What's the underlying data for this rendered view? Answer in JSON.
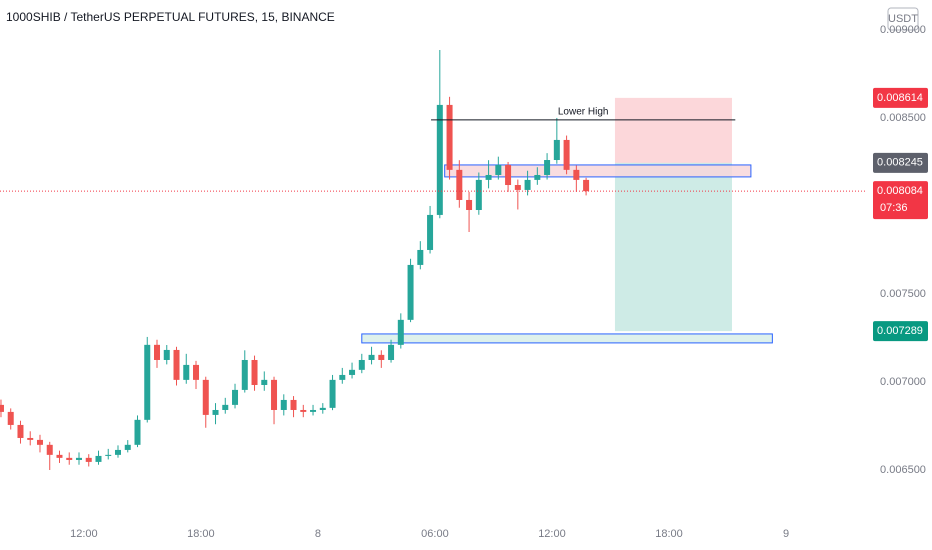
{
  "chart_data": {
    "type": "candlestick",
    "title": "1000SHIB / TetherUS PERPETUAL FUTURES, 15, BINANCE",
    "currency_button": "USDT",
    "x": [
      7.75,
      8.25,
      8.75,
      9.25,
      9.75,
      10.25,
      10.75,
      11.25,
      11.75,
      12.25,
      12.75,
      13.25,
      13.75,
      14.25,
      14.75,
      15.25,
      15.75,
      16.25,
      16.75,
      17.25,
      17.75,
      18.25,
      18.75,
      19.25,
      19.75,
      20.25,
      20.75,
      21.25,
      21.75,
      22.25,
      22.75,
      23.25,
      23.75,
      24.25,
      24.75,
      25.25,
      25.75,
      26.25,
      26.75,
      27.25,
      27.75,
      28.25,
      28.75,
      29.25,
      29.75,
      30.25,
      30.75,
      31.25,
      31.75,
      32.25,
      32.75,
      33.25,
      33.75,
      34.25,
      34.75,
      35.25,
      35.75,
      36.25,
      36.75,
      37.25,
      37.75
    ],
    "open": [
      0.00687,
      0.00683,
      0.006756,
      0.006682,
      0.006671,
      0.006643,
      0.006586,
      0.006569,
      0.006557,
      0.006569,
      0.006546,
      0.00658,
      0.006586,
      0.006614,
      0.006643,
      0.006785,
      0.007211,
      0.007125,
      0.007182,
      0.007012,
      0.007097,
      0.007012,
      0.006813,
      0.006841,
      0.00687,
      0.006955,
      0.007125,
      0.006983,
      0.007012,
      0.006841,
      0.006898,
      0.006841,
      0.00683,
      0.006841,
      0.006853,
      0.007012,
      0.00704,
      0.007069,
      0.007125,
      0.007154,
      0.007125,
      0.007211,
      0.007353,
      0.007665,
      0.00775,
      0.007949,
      0.008574,
      0.008205,
      0.008034,
      0.007977,
      0.008148,
      0.008176,
      0.008233,
      0.008119,
      0.008091,
      0.008148,
      0.008176,
      0.008261,
      0.008375,
      0.008205,
      0.008148
    ],
    "high": [
      0.0069,
      0.00685,
      0.00678,
      0.00672,
      0.0067,
      0.00666,
      0.00661,
      0.0066,
      0.0066,
      0.00659,
      0.00661,
      0.00662,
      0.00664,
      0.00667,
      0.00681,
      0.007256,
      0.00724,
      0.00721,
      0.0072,
      0.00716,
      0.00712,
      0.00703,
      0.00688,
      0.00691,
      0.00699,
      0.00718,
      0.00715,
      0.00706,
      0.00703,
      0.00693,
      0.00692,
      0.00687,
      0.00687,
      0.00688,
      0.00704,
      0.00708,
      0.00711,
      0.00716,
      0.0072,
      0.00718,
      0.00724,
      0.00739,
      0.0077,
      0.0078,
      0.008,
      0.008886,
      0.00862,
      0.00826,
      0.00808,
      0.00819,
      0.00826,
      0.00828,
      0.00825,
      0.00815,
      0.0082,
      0.00822,
      0.0083,
      0.0085,
      0.0084,
      0.00823,
      0.00816
    ],
    "low": [
      0.0068,
      0.00673,
      0.00665,
      0.00664,
      0.0066,
      0.0065,
      0.00654,
      0.00653,
      0.00653,
      0.00652,
      0.00653,
      0.00656,
      0.00657,
      0.0066,
      0.00663,
      0.00677,
      0.00708,
      0.0071,
      0.00698,
      0.00699,
      0.00696,
      0.00674,
      0.00676,
      0.00682,
      0.00685,
      0.00694,
      0.00695,
      0.00695,
      0.00676,
      0.00681,
      0.0068,
      0.0068,
      0.00681,
      0.00682,
      0.00684,
      0.00699,
      0.00702,
      0.00705,
      0.0071,
      0.00708,
      0.00711,
      0.00719,
      0.00734,
      0.00764,
      0.00773,
      0.00793,
      0.00815,
      0.00799,
      0.007852,
      0.00795,
      0.0081,
      0.00815,
      0.00808,
      0.00798,
      0.00806,
      0.00812,
      0.00815,
      0.00824,
      0.00818,
      0.00808,
      0.00806
    ],
    "close": [
      0.00683,
      0.006756,
      0.006682,
      0.006671,
      0.006643,
      0.006586,
      0.006569,
      0.006557,
      0.006569,
      0.006546,
      0.00658,
      0.006586,
      0.006614,
      0.006643,
      0.006785,
      0.007211,
      0.007125,
      0.007182,
      0.007012,
      0.007097,
      0.007012,
      0.006813,
      0.006841,
      0.00687,
      0.006955,
      0.007125,
      0.006983,
      0.007012,
      0.006841,
      0.006898,
      0.006841,
      0.00683,
      0.006841,
      0.006853,
      0.007012,
      0.00704,
      0.007069,
      0.007125,
      0.007154,
      0.007125,
      0.007211,
      0.007353,
      0.007665,
      0.00775,
      0.007949,
      0.008574,
      0.008205,
      0.008034,
      0.007977,
      0.008148,
      0.008176,
      0.008233,
      0.008119,
      0.008091,
      0.008148,
      0.008176,
      0.008261,
      0.008375,
      0.008205,
      0.008148,
      0.008084
    ],
    "up_color": "#26a69a",
    "down_color": "#ef5350",
    "xlim": [
      7.7,
      52.05
    ],
    "ylim": [
      0.006216,
      0.00917
    ],
    "grid": false,
    "xticks": [
      {
        "value": 12,
        "label": "12:00"
      },
      {
        "value": 18,
        "label": "18:00"
      },
      {
        "value": 24,
        "label": "8"
      },
      {
        "value": 30,
        "label": "06:00"
      },
      {
        "value": 36,
        "label": "12:00"
      },
      {
        "value": 42,
        "label": "18:00"
      },
      {
        "value": 48,
        "label": "9"
      }
    ],
    "yticks": [
      {
        "value": 0.0065,
        "label": "0.006500"
      },
      {
        "value": 0.007,
        "label": "0.007000"
      },
      {
        "value": 0.0075,
        "label": "0.007500"
      },
      {
        "value": 0.0085,
        "label": "0.008500"
      },
      {
        "value": 0.009,
        "label": "0.009000"
      }
    ],
    "last_price_countdown": "07:36",
    "last_price_color": "#f23645",
    "annotation": {
      "text": "Lower High",
      "price": 0.008489,
      "x": [
        29.8,
        45.4
      ]
    },
    "zones": [
      {
        "top": 0.008233,
        "bottom": 0.008165,
        "x": [
          30.5,
          46.2
        ],
        "color": "#f8d7da"
      },
      {
        "top": 0.007273,
        "bottom": 0.007222,
        "x": [
          26.25,
          47.3
        ],
        "color": "#d8efe9"
      }
    ],
    "position": {
      "x": [
        39.23,
        45.23
      ],
      "stop": 0.008614,
      "entry": 0.008245,
      "target": 0.007289,
      "stop_color": "#f23645",
      "entry_color": "#5d606b",
      "target_color": "#089981"
    }
  }
}
